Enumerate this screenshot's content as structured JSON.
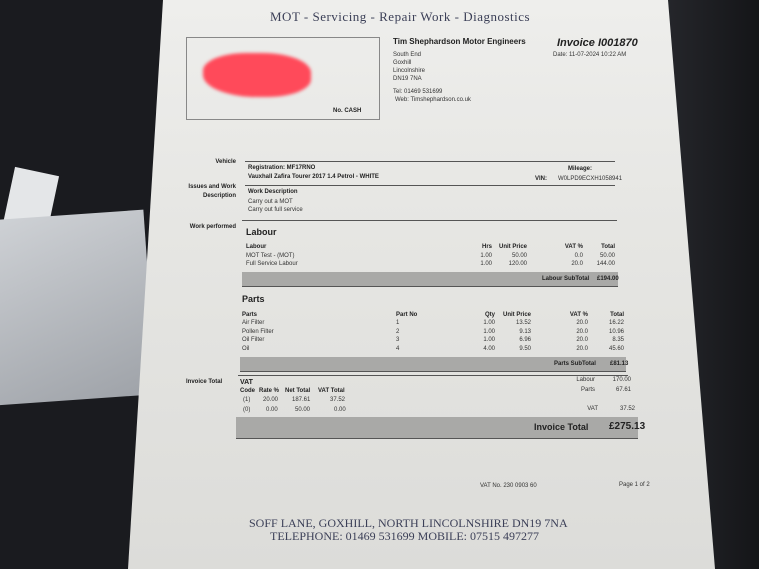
{
  "header": {
    "services": "MOT - Servicing - Repair Work - Diagnostics"
  },
  "customer": {
    "no_label": "No. CASH"
  },
  "company": {
    "name": "Tim Shephardson Motor Engineers",
    "address": [
      "South End",
      "Goxhill",
      "Lincolnshire",
      "DN19 7NA"
    ],
    "tel": "Tel: 01469 531699",
    "web": "Web: Timshephardson.co.uk"
  },
  "invoice": {
    "title": "Invoice I001870",
    "date": "Date: 11-07-2024 10:22 AM"
  },
  "vehicle": {
    "label": "Vehicle",
    "registration": "Registration: MF17RNO",
    "description": "Vauxhall Zafira Tourer  2017 1.4 Petrol - WHITE",
    "mileage_label": "Mileage:",
    "vin_label": "VIN:",
    "vin": "W0LPD9ECXH1058941"
  },
  "work": {
    "label_line1": "Issues and Work",
    "label_line2": "Description",
    "heading": "Work Description",
    "items": [
      "Carry out a MOT",
      "Carry out full service"
    ]
  },
  "labour": {
    "section_label": "Work performed",
    "title": "Labour",
    "headers": [
      "Labour",
      "Hrs",
      "Unit Price",
      "VAT %",
      "Total"
    ],
    "rows": [
      [
        "MOT Test - (MOT)",
        "1.00",
        "50.00",
        "0.0",
        "50.00"
      ],
      [
        "Full Service Labour",
        "1.00",
        "120.00",
        "20.0",
        "144.00"
      ]
    ],
    "subtotal_label": "Labour SubTotal",
    "subtotal": "£194.00"
  },
  "parts": {
    "title": "Parts",
    "headers": [
      "Parts",
      "Part No",
      "Qty",
      "Unit Price",
      "VAT %",
      "Total"
    ],
    "rows": [
      [
        "Air Filter",
        "1",
        "1.00",
        "13.52",
        "20.0",
        "16.22"
      ],
      [
        "Pollen Filter",
        "2",
        "1.00",
        "9.13",
        "20.0",
        "10.96"
      ],
      [
        "Oil Filter",
        "3",
        "1.00",
        "6.96",
        "20.0",
        "8.35"
      ],
      [
        "Oil",
        "4",
        "4.00",
        "9.50",
        "20.0",
        "45.60"
      ]
    ],
    "subtotal_label": "Parts SubTotal",
    "subtotal": "£81.13"
  },
  "totals": {
    "section_label": "Invoice Total",
    "vat_title": "VAT",
    "vat_headers": [
      "Code",
      "Rate %",
      "Net Total",
      "VAT Total"
    ],
    "vat_rows": [
      [
        "(1)",
        "20.00",
        "187.61",
        "37.52"
      ],
      [
        "(0)",
        "0.00",
        "50.00",
        "0.00"
      ]
    ],
    "summary": [
      [
        "Labour",
        "170.00"
      ],
      [
        "Parts",
        "67.61"
      ],
      [
        "VAT",
        "37.52"
      ]
    ],
    "total_label": "Invoice Total",
    "total": "£275.13"
  },
  "footer": {
    "vat_no": "VAT No.  230 0903 60",
    "page": "Page 1 of 2",
    "address": "SOFF LANE, GOXHILL, NORTH LINCOLNSHIRE DN19 7NA",
    "phones": "TELEPHONE: 01469 531699   MOBILE: 07515 497277"
  }
}
